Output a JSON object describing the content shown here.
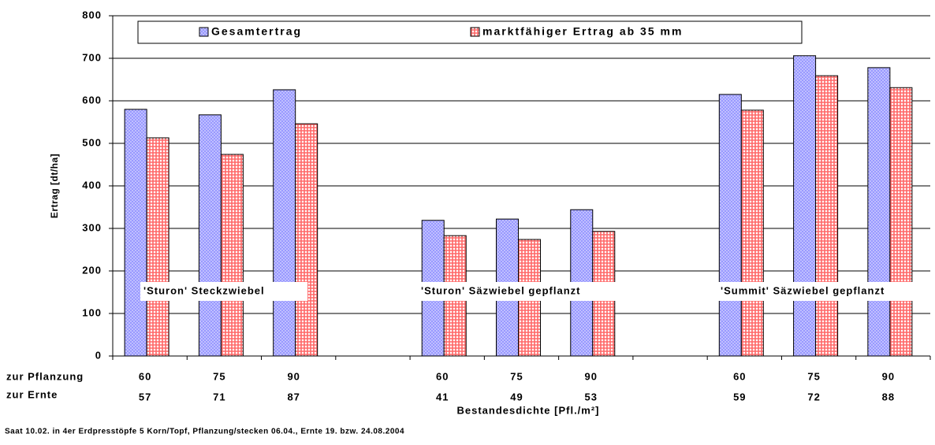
{
  "chart_data": {
    "type": "bar",
    "y_label": "Ertrag [dt/ha]",
    "x_label": "Bestandesdichte [Pfl./m²]",
    "footnote": "Saat 10.02. in 4er Erdpresstöpfe 5 Korn/Topf, Pflanzung/stecken 06.04., Ernte 19. bzw. 24.08.2004",
    "row_labels": [
      "zur Pflanzung",
      "zur Ernte"
    ],
    "categories": [
      "60",
      "75",
      "90",
      null,
      "60",
      "75",
      "90",
      null,
      "60",
      "75",
      "90"
    ],
    "categories2": [
      "57",
      "71",
      "87",
      null,
      "41",
      "49",
      "53",
      null,
      "59",
      "72",
      "88"
    ],
    "annotations": [
      "'Sturon' Steckzwiebel",
      "'Sturon' Säzwiebel gepflanzt",
      "'Summit' Säzwiebel gepflanzt"
    ],
    "series": [
      {
        "name": "Gesamtertrag",
        "color": "#9999ff",
        "values": [
          580,
          567,
          626,
          null,
          319,
          322,
          344,
          null,
          615,
          706,
          678
        ]
      },
      {
        "name": "marktfähiger Ertrag ab 35 mm",
        "color": "#ff6666",
        "values": [
          513,
          474,
          546,
          null,
          283,
          274,
          293,
          null,
          578,
          659,
          631
        ]
      }
    ],
    "ylim": [
      0,
      800
    ],
    "yticks": [
      0,
      100,
      200,
      300,
      400,
      500,
      600,
      700,
      800
    ],
    "grid": true
  }
}
